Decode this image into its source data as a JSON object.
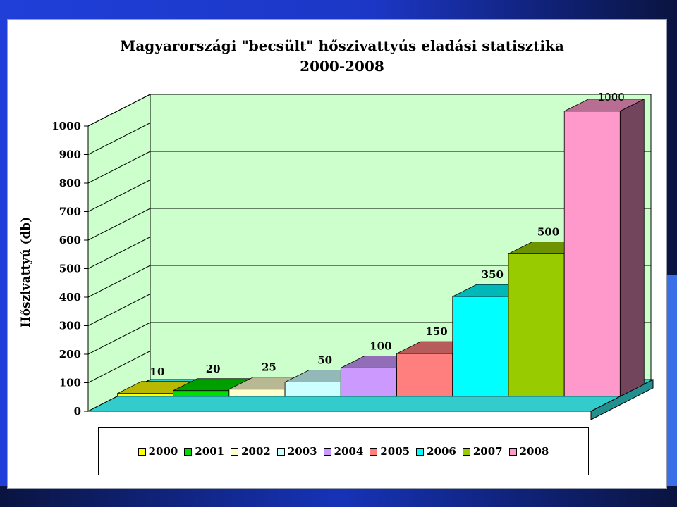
{
  "chart_data": {
    "type": "bar",
    "title": "Magyarországi \"becsült\" hőszivattyús eladási statisztika",
    "subtitle": "2000-2008",
    "xlabel": "",
    "ylabel": "Hőszivattyú (db)",
    "ylim": [
      0,
      1000
    ],
    "yticks": [
      "0",
      "100",
      "200",
      "300",
      "400",
      "500",
      "600",
      "700",
      "800",
      "900",
      "1000"
    ],
    "categories": [
      "2000",
      "2001",
      "2002",
      "2003",
      "2004",
      "2005",
      "2006",
      "2007",
      "2008"
    ],
    "values": [
      10,
      20,
      25,
      50,
      100,
      150,
      350,
      500,
      1000
    ],
    "data_labels": [
      "10",
      "20",
      "25",
      "50",
      "100",
      "150",
      "350",
      "500",
      "1000"
    ],
    "colors": [
      "#ffff00",
      "#00dd00",
      "#ffffcc",
      "#ccffff",
      "#cc99ff",
      "#ff7f7f",
      "#00ffff",
      "#99cc00",
      "#ff99cc"
    ],
    "grid": true,
    "legend_position": "bottom",
    "style": "3d-column",
    "wall_color": "#ccffcc",
    "floor_color": "#33cccc"
  }
}
